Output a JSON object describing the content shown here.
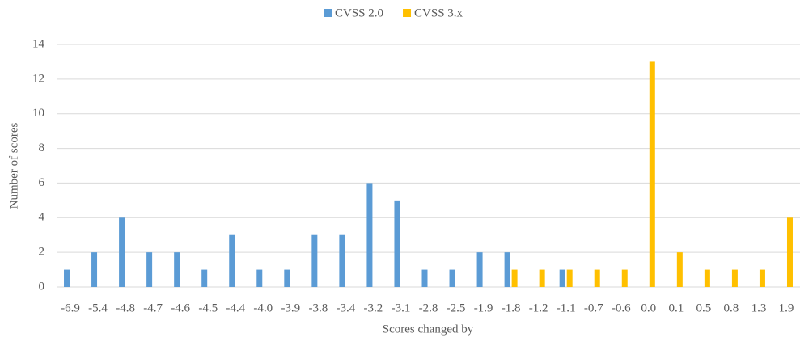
{
  "chart_data": {
    "type": "bar",
    "x_label": "Scores changed by",
    "y_label": "Number of scores",
    "categories": [
      "-6.9",
      "-5.4",
      "-4.8",
      "-4.7",
      "-4.6",
      "-4.5",
      "-4.4",
      "-4.0",
      "-3.9",
      "-3.8",
      "-3.4",
      "-3.2",
      "-3.1",
      "-2.8",
      "-2.5",
      "-1.9",
      "-1.8",
      "-1.2",
      "-1.1",
      "-0.7",
      "-0.6",
      "0.0",
      "0.1",
      "0.5",
      "0.8",
      "1.3",
      "1.9"
    ],
    "series": [
      {
        "name": "CVSS 2.0",
        "color": "#5b9bd5",
        "values": [
          1,
          2,
          4,
          2,
          2,
          1,
          3,
          1,
          1,
          3,
          3,
          6,
          5,
          1,
          1,
          2,
          2,
          null,
          1,
          null,
          null,
          null,
          null,
          null,
          null,
          null,
          null
        ]
      },
      {
        "name": "CVSS 3.x",
        "color": "#ffc000",
        "values": [
          null,
          null,
          null,
          null,
          null,
          null,
          null,
          null,
          null,
          null,
          null,
          null,
          null,
          null,
          null,
          null,
          1,
          1,
          1,
          1,
          1,
          13,
          2,
          1,
          1,
          1,
          4
        ]
      }
    ],
    "ylim": [
      0,
      14
    ],
    "yticks": [
      0,
      2,
      4,
      6,
      8,
      10,
      12,
      14
    ],
    "grid": true,
    "legend": "top"
  }
}
